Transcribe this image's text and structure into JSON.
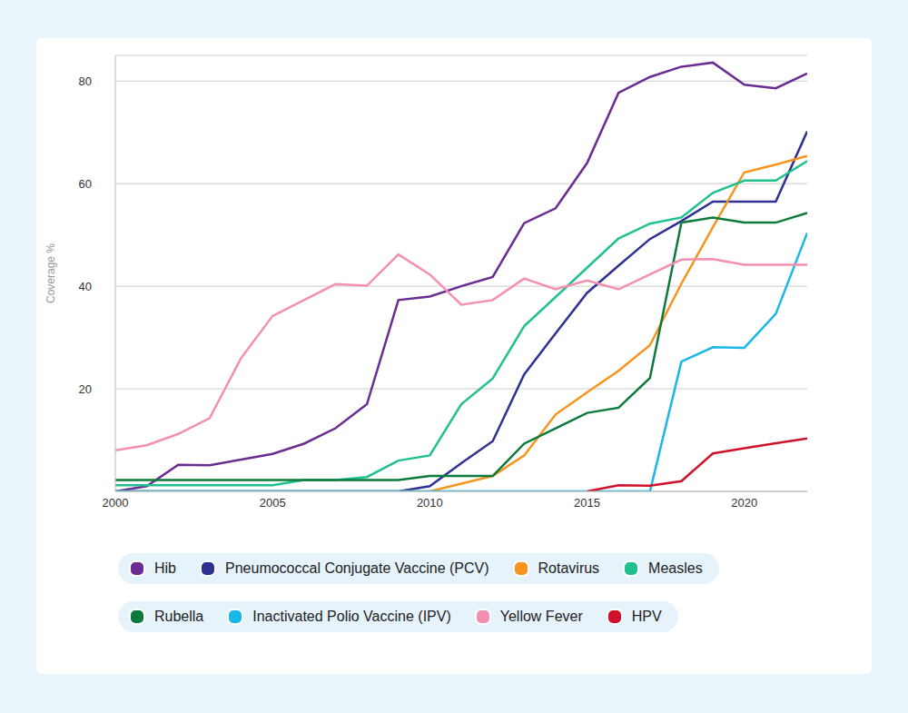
{
  "chart_data": {
    "type": "line",
    "y_label": "Coverage %",
    "x": [
      2000,
      2001,
      2002,
      2003,
      2004,
      2005,
      2006,
      2007,
      2008,
      2009,
      2010,
      2011,
      2012,
      2013,
      2014,
      2015,
      2016,
      2017,
      2018,
      2019,
      2020,
      2021,
      2022
    ],
    "xlim": [
      2000,
      2022
    ],
    "xticks": [
      2000,
      2005,
      2010,
      2015,
      2020
    ],
    "ylim": [
      0,
      85
    ],
    "yticks": [
      20,
      40,
      60,
      80
    ],
    "grid": true,
    "legend": "bottom",
    "series": [
      {
        "name": "Hib",
        "color": "#6a2c91",
        "values": [
          0,
          1,
          5.2,
          5.1,
          6.2,
          7.3,
          9.3,
          12.3,
          17,
          37.3,
          38,
          40,
          41.8,
          52.3,
          55.2,
          64,
          77.7,
          80.8,
          82.8,
          83.6,
          79.3,
          78.6,
          81.5
        ]
      },
      {
        "name": "Pneumococcal Conjugate Vaccine (PCV)",
        "color": "#2e3192",
        "values": [
          0,
          0,
          0,
          0,
          0,
          0,
          0,
          0,
          0,
          0,
          1,
          5.5,
          9.8,
          22.8,
          30.8,
          38.7,
          44,
          49.2,
          52.7,
          56.5,
          56.5,
          56.5,
          70.2
        ]
      },
      {
        "name": "Rotavirus",
        "color": "#f7941d",
        "values": [
          0,
          0,
          0,
          0,
          0,
          0,
          0,
          0,
          0,
          0,
          0,
          1.5,
          3,
          7,
          15,
          19.3,
          23.5,
          28.5,
          40.5,
          51.5,
          62.2,
          63.7,
          65.4
        ]
      },
      {
        "name": "Measles",
        "color": "#21c18f",
        "values": [
          1.2,
          1.2,
          1.2,
          1.2,
          1.2,
          1.2,
          2.2,
          2.2,
          2.8,
          6,
          7,
          17,
          22,
          32.2,
          37.9,
          43.6,
          49.3,
          52.2,
          53.4,
          58.2,
          60.6,
          60.6,
          64.4
        ]
      },
      {
        "name": "Rubella",
        "color": "#0b7a3b",
        "values": [
          2.2,
          2.2,
          2.2,
          2.2,
          2.2,
          2.2,
          2.2,
          2.2,
          2.2,
          2.2,
          3,
          3,
          3,
          9.3,
          12.3,
          15.3,
          16.3,
          22.1,
          52.4,
          53.4,
          52.4,
          52.4,
          54.3
        ]
      },
      {
        "name": "Inactivated Polio Vaccine (IPV)",
        "color": "#19b8e6",
        "values": [
          0,
          0,
          0,
          0,
          0,
          0,
          0,
          0,
          0,
          0,
          0,
          0,
          0,
          0,
          0,
          0,
          0,
          0,
          25.3,
          28.1,
          28,
          34.6,
          50.4
        ]
      },
      {
        "name": "Yellow Fever",
        "color": "#f48fb1",
        "values": [
          8,
          9,
          11.2,
          14.3,
          26,
          34.2,
          37.3,
          40.4,
          40.1,
          46.2,
          42.3,
          36.4,
          37.3,
          41.5,
          39.4,
          41.1,
          39.4,
          42.3,
          45.2,
          45.3,
          44.2,
          44.2,
          44.2
        ]
      },
      {
        "name": "HPV",
        "color": "#d0112b",
        "values": [
          null,
          null,
          null,
          null,
          null,
          null,
          null,
          null,
          null,
          null,
          null,
          null,
          null,
          null,
          null,
          0,
          1.2,
          1.1,
          2,
          7.4,
          8.4,
          9.4,
          10.3
        ]
      }
    ]
  }
}
